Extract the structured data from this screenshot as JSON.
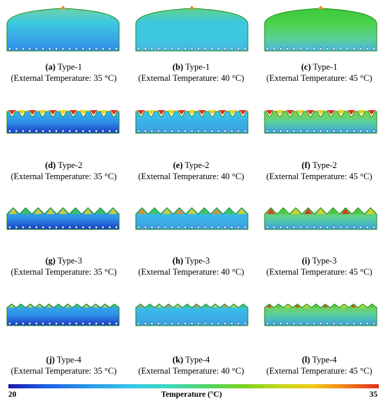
{
  "panels": [
    {
      "label": "(a)",
      "type": "Type-1",
      "ext": "(External Temperature: 35 °C)",
      "shape": "dome",
      "temp": 35
    },
    {
      "label": "(b)",
      "type": "Type-1",
      "ext": "(External Temperature: 40 °C)",
      "shape": "dome",
      "temp": 40
    },
    {
      "label": "(c)",
      "type": "Type-1",
      "ext": "(External Temperature: 45 °C)",
      "shape": "dome",
      "temp": 45
    },
    {
      "label": "(d)",
      "type": "Type-2",
      "ext": "(External Temperature: 35 °C)",
      "shape": "scallop",
      "temp": 35
    },
    {
      "label": "(e)",
      "type": "Type-2",
      "ext": "(External Temperature: 40 °C)",
      "shape": "scallop",
      "temp": 40
    },
    {
      "label": "(f)",
      "type": "Type-2",
      "ext": "(External Temperature: 45 °C)",
      "shape": "scallop",
      "temp": 45
    },
    {
      "label": "(g)",
      "type": "Type-3",
      "ext": "(External Temperature: 35 °C)",
      "shape": "zigzag-large",
      "temp": 35
    },
    {
      "label": "(h)",
      "type": "Type-3",
      "ext": "(External Temperature: 40 °C)",
      "shape": "zigzag-large",
      "temp": 40
    },
    {
      "label": "(i)",
      "type": "Type-3",
      "ext": "(External Temperature: 45 °C)",
      "shape": "zigzag-large",
      "temp": 45
    },
    {
      "label": "(j)",
      "type": "Type-4",
      "ext": "(External Temperature: 35 °C)",
      "shape": "zigzag-small",
      "temp": 35
    },
    {
      "label": "(k)",
      "type": "Type-4",
      "ext": "(External Temperature: 40 °C)",
      "shape": "zigzag-small",
      "temp": 40
    },
    {
      "label": "(l)",
      "type": "Type-4",
      "ext": "(External Temperature: 45 °C)",
      "shape": "zigzag-small",
      "temp": 45
    }
  ],
  "legend": {
    "min": "20",
    "max": "35",
    "title": "Temperature (°C)"
  },
  "colors": {
    "deep_blue": "#1a3cc8",
    "blue": "#2e8ee8",
    "cyan": "#3cc8e0",
    "green": "#3cc83c",
    "yellow": "#e8d21c",
    "orange": "#f08a1a",
    "red": "#e02a1a"
  }
}
